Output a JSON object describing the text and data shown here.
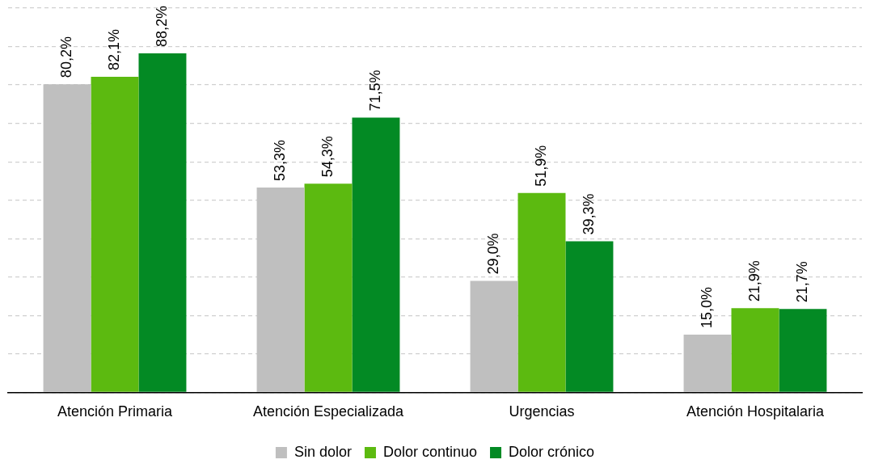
{
  "chart_data": {
    "type": "bar",
    "categories": [
      "Atención Primaria",
      "Atención Especializada",
      "Urgencias",
      "Atención Hospitalaria"
    ],
    "series": [
      {
        "name": "Sin dolor",
        "color": "#bfbfbf",
        "values": [
          80.2,
          53.3,
          29.0,
          15.0
        ],
        "value_labels": [
          "80,2%",
          "53,3%",
          "29,0%",
          "15,0%"
        ]
      },
      {
        "name": "Dolor continuo",
        "color": "#5cba10",
        "values": [
          82.1,
          54.3,
          51.9,
          21.9
        ],
        "value_labels": [
          "82,1%",
          "54,3%",
          "51,9%",
          "21,9%"
        ]
      },
      {
        "name": "Dolor crónico",
        "color": "#038a24",
        "values": [
          88.2,
          71.5,
          39.3,
          21.7
        ],
        "value_labels": [
          "88,2%",
          "71,5%",
          "39,3%",
          "21,7%"
        ]
      }
    ],
    "ylim": [
      0,
      100
    ],
    "yticks": [
      {
        "value": 0,
        "label": null
      },
      {
        "value": 10,
        "label": null
      },
      {
        "value": 20,
        "label": null
      },
      {
        "value": 30,
        "label": null
      },
      {
        "value": 40,
        "label": null
      },
      {
        "value": 50,
        "label": null
      },
      {
        "value": 60,
        "label": null
      },
      {
        "value": 70,
        "label": null
      },
      {
        "value": 80,
        "label": null
      },
      {
        "value": 90,
        "label": null
      },
      {
        "value": 100,
        "label": null
      }
    ],
    "tick_labels": "x",
    "grid": "y",
    "legend": "bottom"
  }
}
